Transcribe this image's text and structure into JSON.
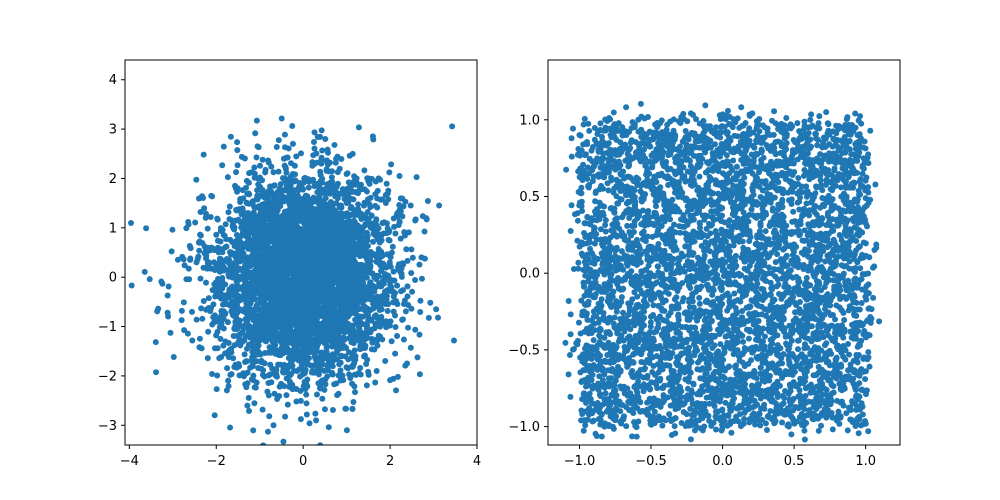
{
  "chart_data": [
    {
      "type": "scatter",
      "distribution": "normal",
      "num_points": 5000,
      "mean": [
        0,
        0
      ],
      "std": [
        1,
        1
      ],
      "xlim": [
        -4.1,
        4.0
      ],
      "ylim": [
        -3.4,
        4.4
      ],
      "xticks": [
        -4,
        -2,
        0,
        2,
        4
      ],
      "yticks": [
        -3,
        -2,
        -1,
        0,
        1,
        2,
        3,
        4
      ],
      "xtick_labels": [
        "−4",
        "−2",
        "0",
        "2",
        "4"
      ],
      "ytick_labels": [
        "−3",
        "−2",
        "−1",
        "0",
        "1",
        "2",
        "3",
        "4"
      ],
      "grid": false,
      "color": "#1f77b4"
    },
    {
      "type": "scatter",
      "distribution": "uniform-square",
      "num_points": 5000,
      "x_range": [
        -1.0,
        1.0
      ],
      "y_range": [
        -1.0,
        1.0
      ],
      "xlim": [
        -1.22,
        1.24
      ],
      "ylim": [
        -1.12,
        1.39
      ],
      "xticks": [
        -1.0,
        -0.5,
        0.0,
        0.5,
        1.0
      ],
      "yticks": [
        -1.0,
        -0.5,
        0.0,
        0.5,
        1.0
      ],
      "xtick_labels": [
        "−1.0",
        "−0.5",
        "0.0",
        "0.5",
        "1.0"
      ],
      "ytick_labels": [
        "−1.0",
        "−0.5",
        "0.0",
        "0.5",
        "1.0"
      ],
      "grid": false,
      "color": "#1f77b4"
    }
  ]
}
